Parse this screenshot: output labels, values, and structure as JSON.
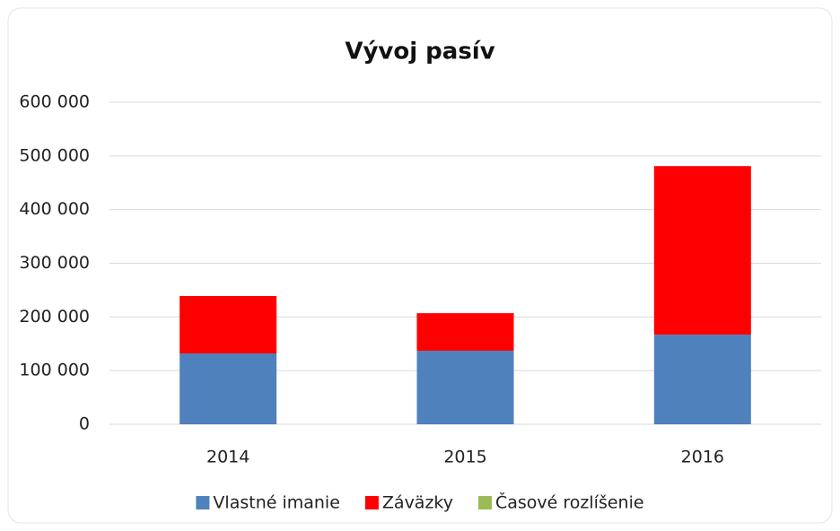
{
  "chart_data": {
    "type": "stacked_bar",
    "title": "Vývoj pasív",
    "categories": [
      "2014",
      "2015",
      "2016"
    ],
    "series": [
      {
        "name": "Vlastné imanie",
        "color": "#4f81bd",
        "values": [
          132000,
          137000,
          167000
        ]
      },
      {
        "name": "Záväzky",
        "color": "#ff0000",
        "values": [
          107000,
          70000,
          314000
        ]
      },
      {
        "name": "Časové rozlíšenie",
        "color": "#9bbb59",
        "values": [
          0,
          0,
          0
        ]
      }
    ],
    "ylim": [
      0,
      600000
    ],
    "yticks": [
      0,
      {
        "value": 100000,
        "label": "100 000"
      },
      {
        "value": 200000,
        "label": "200 000"
      },
      {
        "value": 300000,
        "label": "300 000"
      },
      {
        "value": 400000,
        "label": "400 000"
      },
      {
        "value": 500000,
        "label": "500 000"
      },
      {
        "value": 600000,
        "label": "600 000"
      }
    ],
    "grid": true,
    "legend": "bottom"
  }
}
